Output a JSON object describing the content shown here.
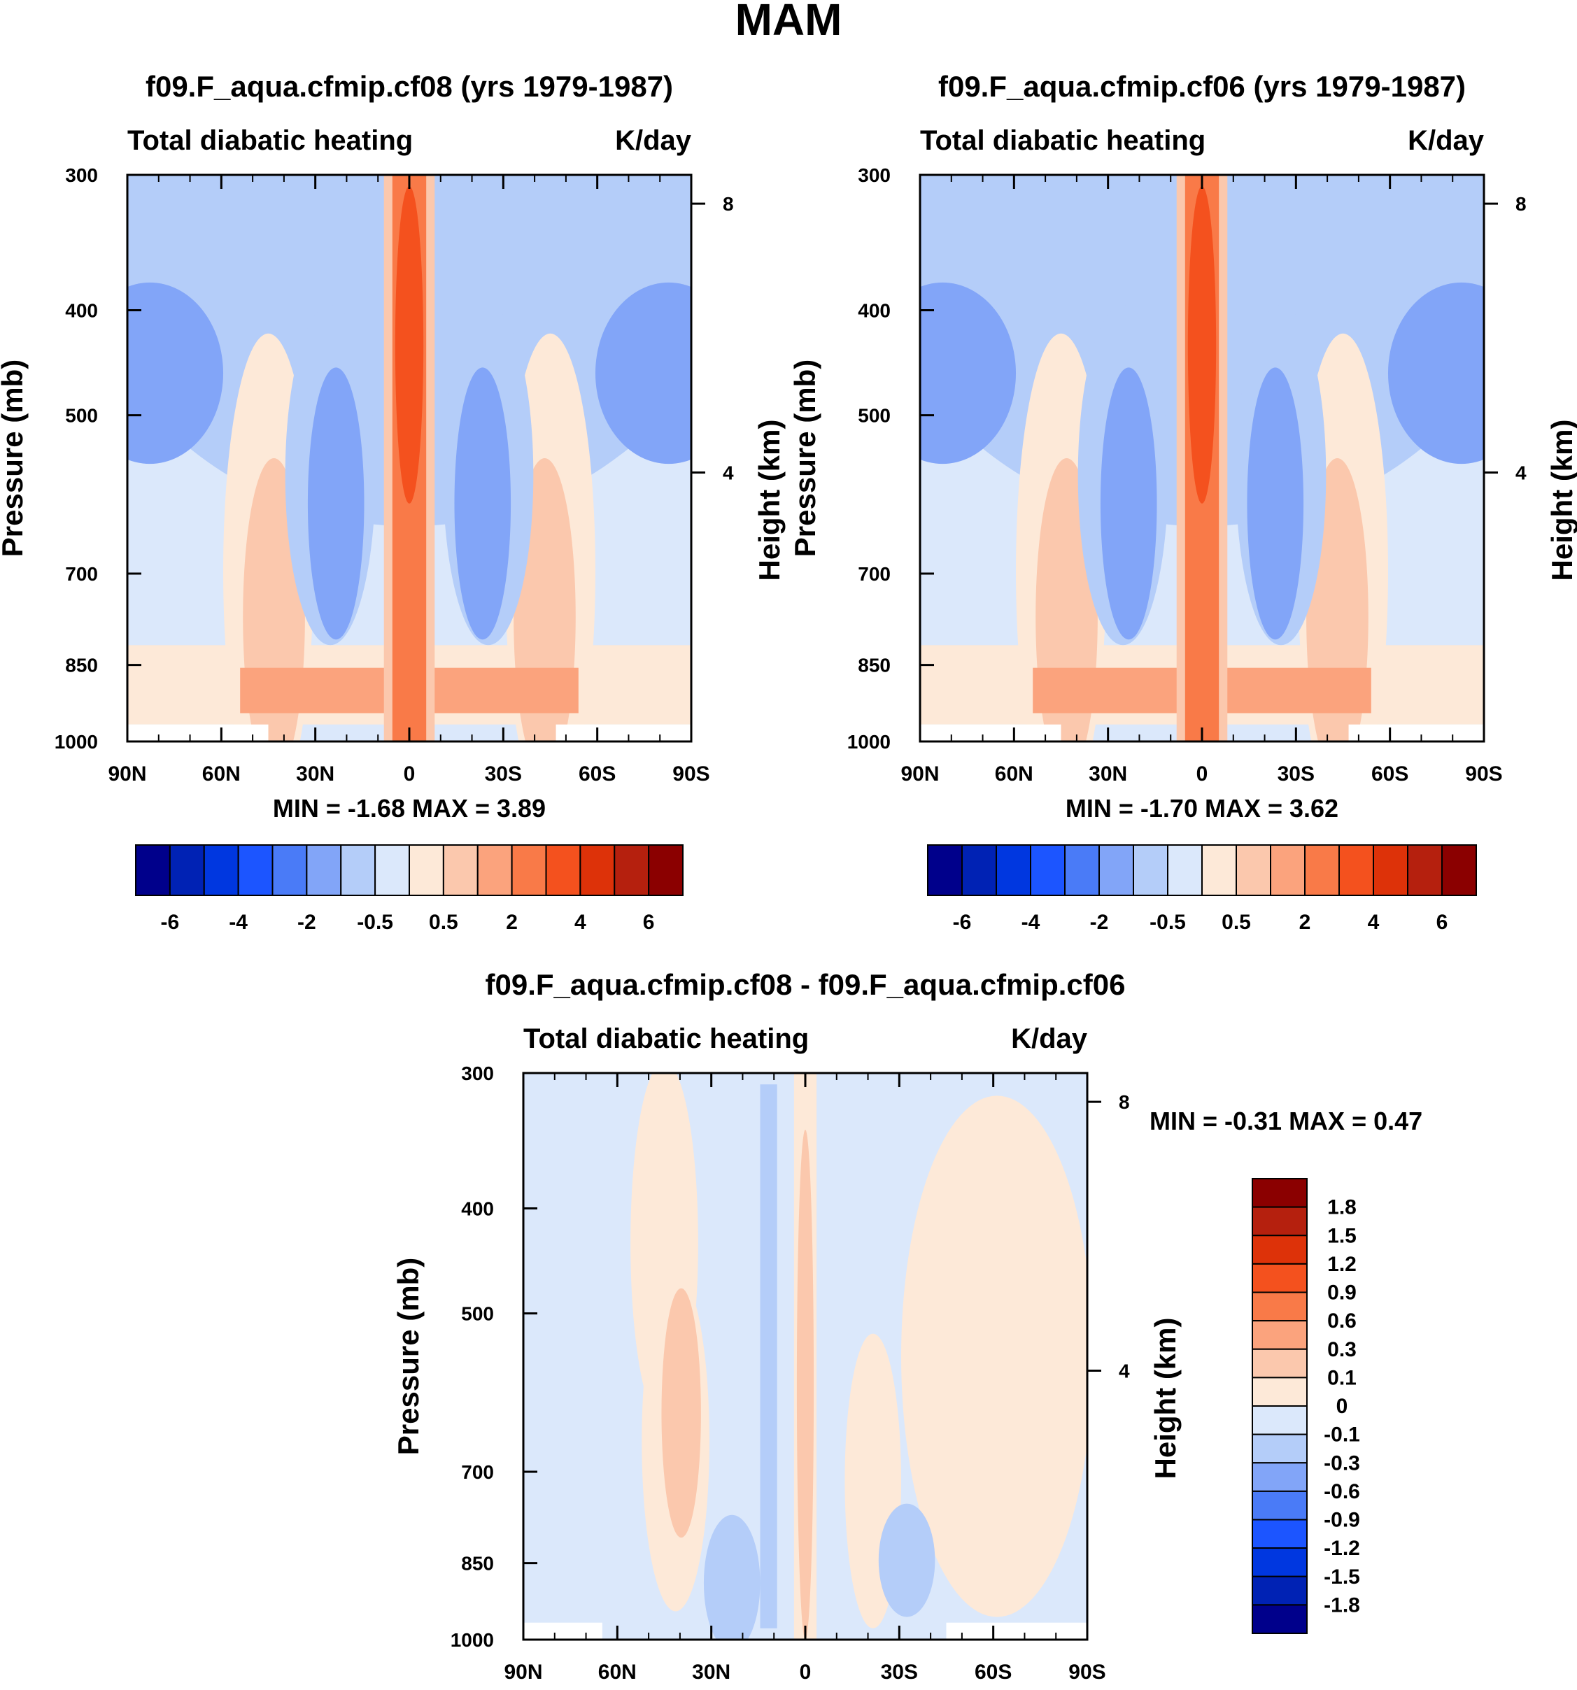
{
  "figure": {
    "title": "MAM"
  },
  "palette": {
    "diverging16": [
      "#00008b",
      "#0022b4",
      "#0037e0",
      "#1c55ff",
      "#4a7bf7",
      "#82a5f8",
      "#b4cdf9",
      "#dbe8fb",
      "#fde9d8",
      "#fbc8ad",
      "#fba37d",
      "#f97a48",
      "#f4511e",
      "#dd3209",
      "#b5200e",
      "#8b0000"
    ]
  },
  "chart_data": [
    {
      "type": "contour",
      "id": "panel1",
      "title": "f09.F_aqua.cfmip.cf08 (yrs 1979-1987)",
      "left_string": "Total diabatic heating",
      "right_string": "K/day",
      "ylabel": "Pressure (mb)",
      "ylabel_right": "Height (km)",
      "x_ticks": [
        "90N",
        "60N",
        "30N",
        "0",
        "30S",
        "60S",
        "90S"
      ],
      "y_ticks": [
        "300",
        "400",
        "500",
        "700",
        "850",
        "1000"
      ],
      "y_right_ticks": [
        "8",
        "4"
      ],
      "xlim": [
        -90,
        90
      ],
      "ylim": [
        300,
        1000
      ],
      "stats_text": "MIN =  -1.68  MAX =   3.89",
      "min": -1.68,
      "max": 3.89,
      "colorbar_labels": [
        "-6",
        "-4",
        "-2",
        "-0.5",
        "0.5",
        "2",
        "4",
        "6"
      ]
    },
    {
      "type": "contour",
      "id": "panel2",
      "title": "f09.F_aqua.cfmip.cf06 (yrs 1979-1987)",
      "left_string": "Total diabatic heating",
      "right_string": "K/day",
      "ylabel": "Pressure (mb)",
      "ylabel_right": "Height (km)",
      "x_ticks": [
        "90N",
        "60N",
        "30N",
        "0",
        "30S",
        "60S",
        "90S"
      ],
      "y_ticks": [
        "300",
        "400",
        "500",
        "700",
        "850",
        "1000"
      ],
      "y_right_ticks": [
        "8",
        "4"
      ],
      "xlim": [
        -90,
        90
      ],
      "ylim": [
        300,
        1000
      ],
      "stats_text": "MIN =  -1.70  MAX =   3.62",
      "min": -1.7,
      "max": 3.62,
      "colorbar_labels": [
        "-6",
        "-4",
        "-2",
        "-0.5",
        "0.5",
        "2",
        "4",
        "6"
      ]
    },
    {
      "type": "contour",
      "id": "panel3",
      "title": "f09.F_aqua.cfmip.cf08 - f09.F_aqua.cfmip.cf06",
      "left_string": "Total diabatic heating",
      "right_string": "K/day",
      "ylabel": "Pressure (mb)",
      "ylabel_right": "Height (km)",
      "x_ticks": [
        "90N",
        "60N",
        "30N",
        "0",
        "30S",
        "60S",
        "90S"
      ],
      "y_ticks": [
        "300",
        "400",
        "500",
        "700",
        "850",
        "1000"
      ],
      "y_right_ticks": [
        "8",
        "4"
      ],
      "xlim": [
        -90,
        90
      ],
      "ylim": [
        300,
        1000
      ],
      "stats_text": "MIN =  -0.31  MAX =   0.47",
      "min": -0.31,
      "max": 0.47,
      "colorbar_labels": [
        "1.8",
        "1.5",
        "1.2",
        "0.9",
        "0.6",
        "0.3",
        "0.1",
        "0",
        "-0.1",
        "-0.3",
        "-0.6",
        "-0.9",
        "-1.2",
        "-1.5",
        "-1.8"
      ]
    }
  ]
}
